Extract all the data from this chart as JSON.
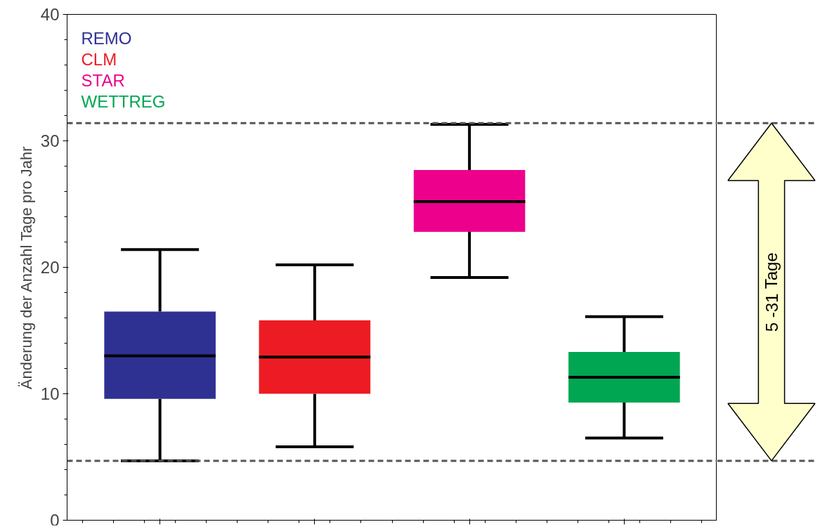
{
  "chart_data": {
    "type": "box",
    "ylabel": "Änderung der Anzahl Tage pro Jahr",
    "categories": [
      null,
      null,
      null,
      null
    ],
    "series": [
      {
        "name": "REMO",
        "color": "#2e3192",
        "boxes": [
          {
            "low": 4.7,
            "q1": 9.6,
            "median": 13.0,
            "q3": 16.5,
            "high": 21.4
          },
          null,
          null,
          null
        ]
      },
      {
        "name": "CLM",
        "color": "#ed1c24",
        "boxes": [
          null,
          {
            "low": 5.8,
            "q1": 10.0,
            "median": 12.9,
            "q3": 15.8,
            "high": 20.2
          },
          null,
          null
        ]
      },
      {
        "name": "STAR",
        "color": "#ec008c",
        "boxes": [
          null,
          null,
          {
            "low": 19.2,
            "q1": 22.8,
            "median": 25.2,
            "q3": 27.7,
            "high": 31.3
          },
          null
        ]
      },
      {
        "name": "WETTREG",
        "color": "#00a651",
        "boxes": [
          null,
          null,
          null,
          {
            "low": 6.5,
            "q1": 9.3,
            "median": 11.3,
            "q3": 13.3,
            "high": 16.1
          }
        ]
      }
    ],
    "ylim": [
      0,
      40
    ],
    "yticks": [
      0,
      10,
      20,
      30,
      40
    ],
    "ref_lines": [
      {
        "axis": "y",
        "value": 31.4,
        "color": "#555555",
        "line_style": "dashed"
      },
      {
        "axis": "y",
        "value": 4.7,
        "color": "#555555",
        "line_style": "dashed"
      }
    ],
    "annotations": [
      "5 -31 Tage"
    ],
    "legend": "top left",
    "grid": false,
    "tick_labels": "y"
  }
}
